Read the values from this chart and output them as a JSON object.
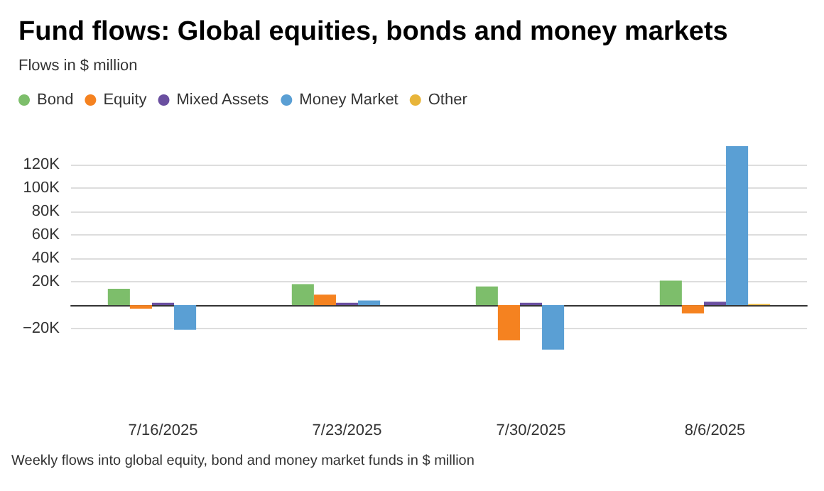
{
  "chart_data": {
    "type": "bar",
    "title": "Fund flows: Global equities, bonds and money markets",
    "subtitle": "Flows in $ million",
    "categories": [
      "7/16/2025",
      "7/23/2025",
      "7/30/2025",
      "8/6/2025"
    ],
    "series": [
      {
        "name": "Bond",
        "color": "#7dbe6b",
        "values": [
          14000,
          18000,
          16000,
          21000
        ]
      },
      {
        "name": "Equity",
        "color": "#f58220",
        "values": [
          -3000,
          9000,
          -30000,
          -7000
        ]
      },
      {
        "name": "Mixed Assets",
        "color": "#6a4fa0",
        "values": [
          2000,
          2000,
          2000,
          3000
        ]
      },
      {
        "name": "Money Market",
        "color": "#5a9fd4",
        "values": [
          -21000,
          4000,
          -38000,
          136000
        ]
      },
      {
        "name": "Other",
        "color": "#e8b53a",
        "values": [
          0,
          0,
          0,
          1000
        ]
      }
    ],
    "ylim": [
      -40000,
      136000
    ],
    "yticks": [
      {
        "value": -20000,
        "label": "−20K"
      },
      {
        "value": 20000,
        "label": "20K"
      },
      {
        "value": 40000,
        "label": "40K"
      },
      {
        "value": 60000,
        "label": "60K"
      },
      {
        "value": 80000,
        "label": "80K"
      },
      {
        "value": 100000,
        "label": "100K"
      },
      {
        "value": 120000,
        "label": "120K"
      }
    ],
    "grid": "y",
    "legend": "top left",
    "annotations": [
      "Weekly flows into global equity, bond and money market funds in $ million"
    ]
  }
}
